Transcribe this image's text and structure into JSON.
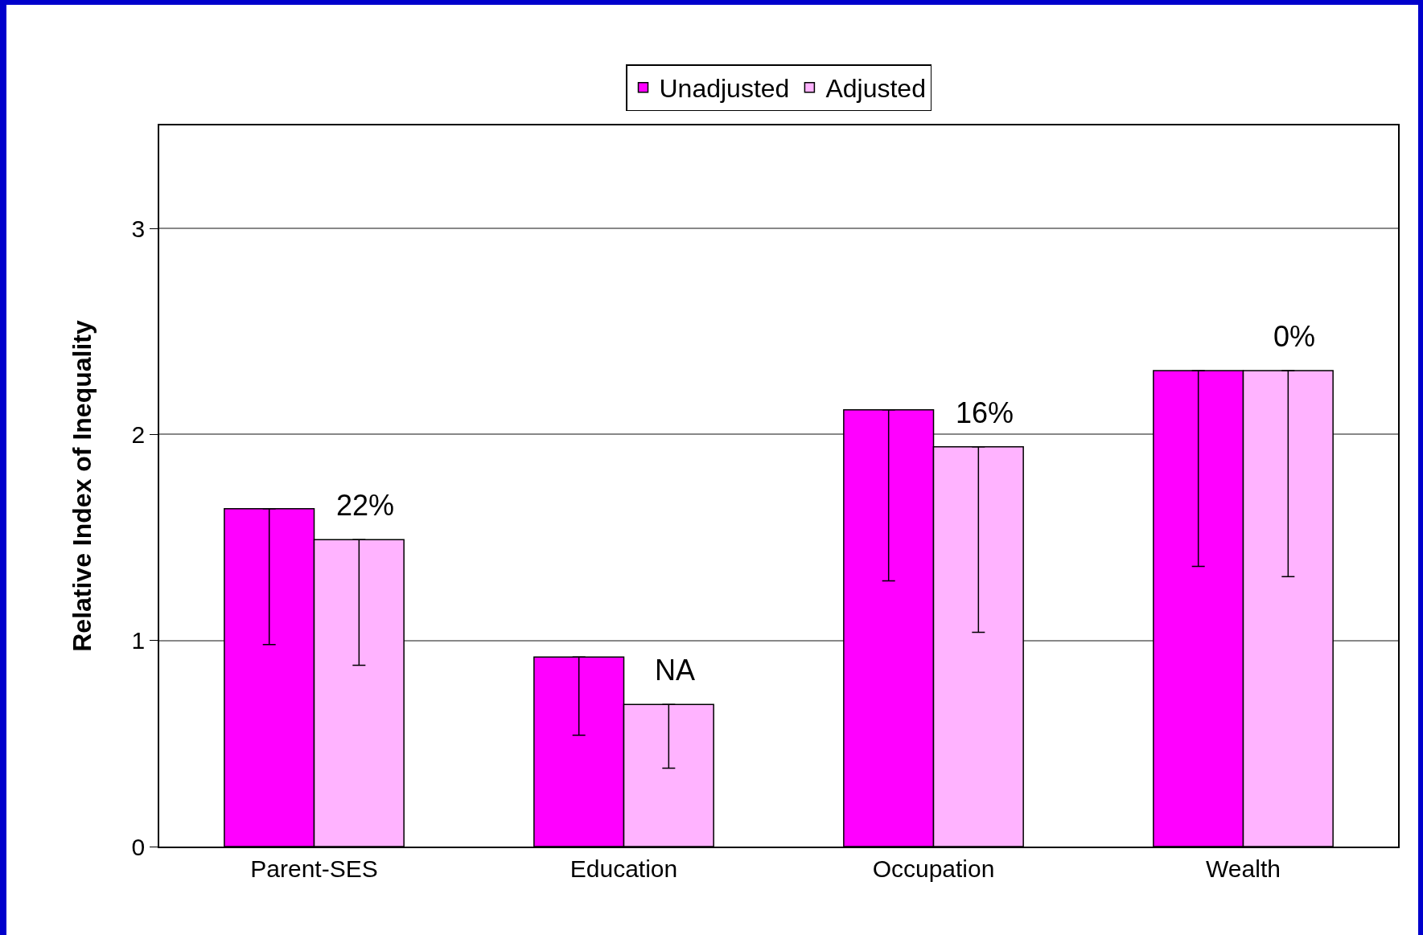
{
  "chart_data": {
    "type": "bar",
    "ylabel": "Relative Index of Inequality",
    "categories": [
      "Parent-SES",
      "Education",
      "Occupation",
      "Wealth"
    ],
    "series": [
      {
        "name": "Unadjusted",
        "color": "#ff00ff",
        "values": [
          1.64,
          0.92,
          2.12,
          2.31
        ],
        "errors": [
          [
            0.98,
            1.64
          ],
          [
            0.54,
            0.92
          ],
          [
            1.29,
            2.12
          ],
          [
            1.36,
            2.31
          ]
        ]
      },
      {
        "name": "Adjusted",
        "color": "#ffb3ff",
        "values": [
          1.49,
          0.69,
          1.94,
          2.31
        ],
        "errors": [
          [
            0.88,
            1.49
          ],
          [
            0.38,
            0.69
          ],
          [
            1.04,
            1.94
          ],
          [
            1.31,
            2.31
          ]
        ]
      }
    ],
    "annotations": [
      "22%",
      "NA",
      "16%",
      "0%"
    ],
    "ylim": [
      0,
      3.5
    ],
    "yticks": [
      0,
      1,
      2,
      3
    ],
    "grid": "y",
    "legend": "top"
  }
}
